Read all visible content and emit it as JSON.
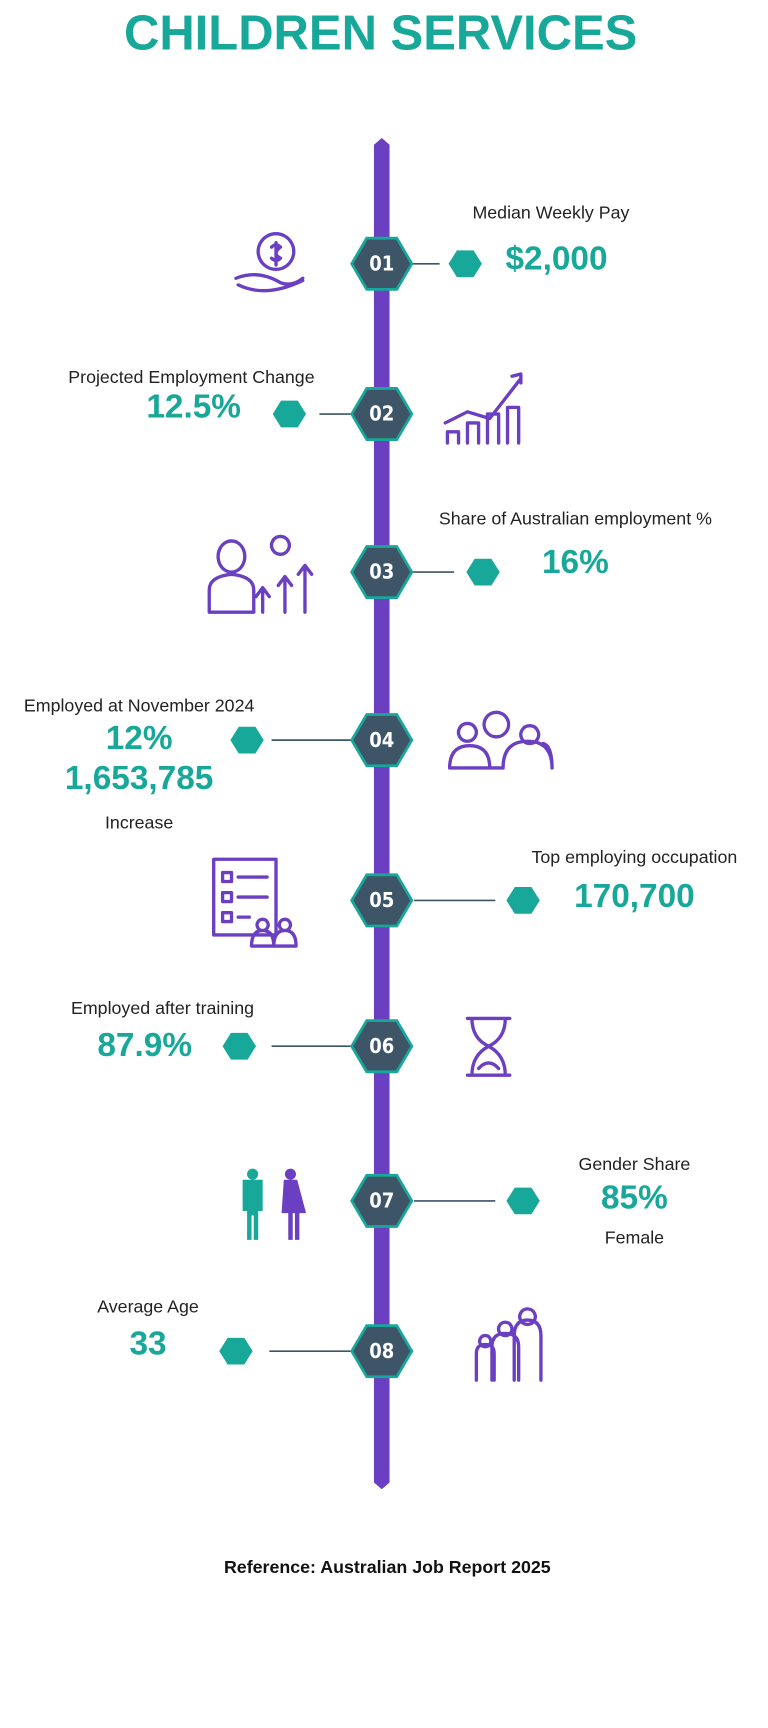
{
  "header": {
    "title": "CHILDREN SERVICES"
  },
  "items": [
    {
      "number": "01",
      "label": "Median Weekly Pay",
      "values": [
        "$2,000"
      ]
    },
    {
      "number": "02",
      "label": "Projected Employment Change",
      "values": [
        "12.5%"
      ]
    },
    {
      "number": "03",
      "label": "Share of Australian employment %",
      "values": [
        "16%"
      ]
    },
    {
      "number": "04",
      "label": "Employed at November 2024",
      "values": [
        "12%",
        "1,653,785"
      ],
      "note": "Increase"
    },
    {
      "number": "05",
      "label": "Top employing occupation",
      "values": [
        "170,700"
      ]
    },
    {
      "number": "06",
      "label": "Employed after training",
      "values": [
        "87.9%"
      ]
    },
    {
      "number": "07",
      "label": "Gender Share",
      "values": [
        "85%"
      ],
      "note": "Female"
    },
    {
      "number": "08",
      "label": "Average Age",
      "values": [
        "33"
      ]
    }
  ],
  "footer": {
    "reference": "Reference: Australian Job Report 2025"
  }
}
